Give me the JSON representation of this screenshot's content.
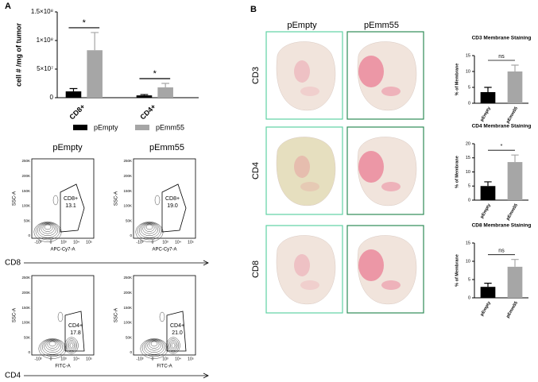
{
  "panel_labels": [
    "A",
    "B"
  ],
  "chart_data": [
    {
      "type": "bar",
      "ylabel": "cell # /mg of tumor",
      "categories": [
        "CD8+",
        "CD4+"
      ],
      "series": [
        {
          "name": "pEmpty",
          "color": "#000000",
          "values": [
            11000000,
            4000000
          ],
          "errors": [
            5000000,
            1500000
          ]
        },
        {
          "name": "pEmm55",
          "color": "#a6a6a6",
          "values": [
            83000000,
            18000000
          ],
          "errors": [
            31000000,
            7000000
          ]
        }
      ],
      "annotations": [
        "*",
        "*"
      ],
      "ylim": [
        0,
        150000000
      ],
      "yticks": [
        0,
        {
          "value": 50000000,
          "label": "5×10⁷"
        },
        {
          "value": 100000000,
          "label": "1×10⁸"
        },
        {
          "value": 150000000,
          "label": "1.5×10⁸"
        }
      ]
    },
    {
      "type": "bar",
      "title": "CD3 Membrane Staining",
      "ylabel": "% of Membrane",
      "categories": [
        "pEmpty",
        "pEmm55"
      ],
      "values": [
        3.5,
        10
      ],
      "errors": [
        1.5,
        2
      ],
      "colors": [
        "#000000",
        "#a6a6a6"
      ],
      "annotation": "ns",
      "ylim": [
        0,
        15
      ],
      "yticks": [
        0,
        5,
        10,
        15
      ]
    },
    {
      "type": "bar",
      "title": "CD4 Membrane Staining",
      "ylabel": "% of Membrane",
      "categories": [
        "pEmpty",
        "pEmm55"
      ],
      "values": [
        5,
        13.5
      ],
      "errors": [
        1.5,
        2.5
      ],
      "colors": [
        "#000000",
        "#a6a6a6"
      ],
      "annotation": "*",
      "ylim": [
        0,
        20
      ],
      "yticks": [
        0,
        5,
        10,
        15,
        20
      ]
    },
    {
      "type": "bar",
      "title": "CD8 Membrane Staining",
      "ylabel": "% of Membrane",
      "categories": [
        "pEmpty",
        "pEmm55"
      ],
      "values": [
        3,
        8.5
      ],
      "errors": [
        1,
        2
      ],
      "colors": [
        "#000000",
        "#a6a6a6"
      ],
      "annotation": "ns",
      "ylim": [
        0,
        15
      ],
      "yticks": [
        0,
        5,
        10,
        15
      ]
    }
  ],
  "flow": {
    "headings": [
      "pEmpty",
      "pEmm55"
    ],
    "y_label": "SSC-A",
    "y_ticks": [
      "250K",
      "200K",
      "150K",
      "100K",
      "50K",
      "0"
    ],
    "rows": [
      {
        "marker": "CD8",
        "x_label": "APC-Cy7-A",
        "x_ticks": [
          "-10³",
          "0",
          "10³",
          "10⁴",
          "10⁵"
        ],
        "gates": [
          {
            "name": "CD8+",
            "percent": "13.1"
          },
          {
            "name": "CD8+",
            "percent": "19.0"
          }
        ]
      },
      {
        "marker": "CD4",
        "x_label": "FITC-A",
        "x_ticks": [
          "-10³",
          "0",
          "10³",
          "10⁴",
          "10⁵"
        ],
        "gates": [
          {
            "name": "CD4+",
            "percent": "17.8"
          },
          {
            "name": "CD4+",
            "percent": "21.0"
          }
        ]
      }
    ]
  },
  "tissue": {
    "columns": [
      "pEmpty",
      "pEmm55"
    ],
    "rows": [
      "CD3",
      "CD4",
      "CD8"
    ]
  }
}
